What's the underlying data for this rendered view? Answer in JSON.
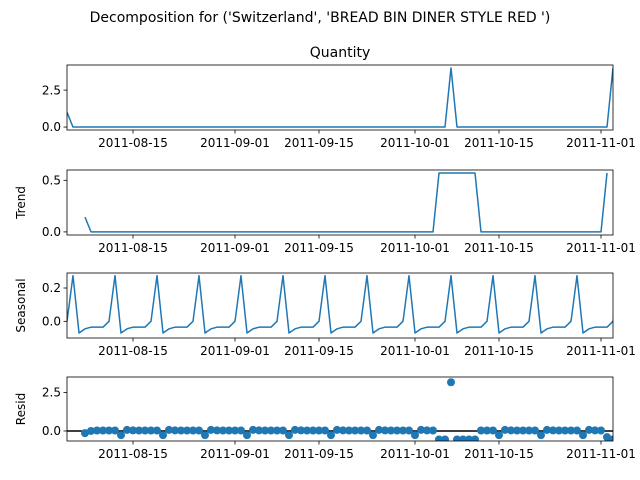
{
  "figure": {
    "suptitle": "Decomposition for ('Switzerland', 'BREAD BIN DINER STYLE RED ')"
  },
  "chart_data": [
    {
      "type": "line",
      "title": "Quantity",
      "ylabel": "",
      "x_start": "2011-08-04",
      "x_end": "2011-11-03",
      "x_tick_labels": [
        "2011-08-15",
        "2011-09-01",
        "2011-09-15",
        "2011-10-01",
        "2011-10-15",
        "2011-11-01"
      ],
      "y_tick_labels": [
        "0.0",
        "2.5"
      ],
      "ylim": [
        -0.2,
        4.2
      ],
      "series": [
        {
          "points": [
            [
              "2011-08-04",
              1.0
            ],
            [
              "2011-08-05",
              0
            ],
            [
              "2011-10-06",
              0
            ],
            [
              "2011-10-07",
              4.0
            ],
            [
              "2011-10-08",
              0
            ],
            [
              "2011-11-02",
              0
            ],
            [
              "2011-11-03",
              4.0
            ]
          ]
        }
      ],
      "color": "#1f77b4"
    },
    {
      "type": "line",
      "title": "",
      "ylabel": "Trend",
      "x_start": "2011-08-04",
      "x_end": "2011-11-03",
      "x_tick_labels": [
        "2011-08-15",
        "2011-09-01",
        "2011-09-15",
        "2011-10-01",
        "2011-10-15",
        "2011-11-01"
      ],
      "y_tick_labels": [
        "0.0",
        "0.5"
      ],
      "ylim": [
        -0.03,
        0.6
      ],
      "series": [
        {
          "points": [
            [
              "2011-08-07",
              0.143
            ],
            [
              "2011-08-08",
              0
            ],
            [
              "2011-10-04",
              0
            ],
            [
              "2011-10-05",
              0.571
            ],
            [
              "2011-10-11",
              0.571
            ],
            [
              "2011-10-12",
              0
            ],
            [
              "2011-11-01",
              0
            ],
            [
              "2011-11-02",
              0.571
            ]
          ]
        }
      ],
      "color": "#1f77b4"
    },
    {
      "type": "line",
      "title": "",
      "ylabel": "Seasonal",
      "x_start": "2011-08-04",
      "x_end": "2011-11-03",
      "x_tick_labels": [
        "2011-08-15",
        "2011-09-01",
        "2011-09-15",
        "2011-10-01",
        "2011-10-15",
        "2011-11-01"
      ],
      "y_tick_labels": [
        "0.0",
        "0.2"
      ],
      "ylim": [
        -0.1,
        0.29
      ],
      "pattern_start": "2011-08-04",
      "pattern_days": 92,
      "pattern": [
        0.0,
        0.274,
        -0.07,
        -0.045,
        -0.035,
        -0.035,
        -0.035
      ],
      "series": [
        {}
      ],
      "color": "#1f77b4"
    },
    {
      "type": "scatter",
      "title": "",
      "ylabel": "Resid",
      "x_start": "2011-08-04",
      "x_end": "2011-11-03",
      "x_tick_labels": [
        "2011-08-15",
        "2011-09-01",
        "2011-09-15",
        "2011-10-01",
        "2011-10-15",
        "2011-11-01"
      ],
      "y_tick_labels": [
        "0.0",
        "2.5"
      ],
      "ylim": [
        -0.65,
        3.5
      ],
      "baseline": 0,
      "series": [
        {
          "points": [
            [
              "2011-08-07",
              -0.14
            ],
            [
              "2011-08-08",
              0.0
            ],
            [
              "2011-08-09",
              0.03
            ],
            [
              "2011-08-10",
              0.03
            ],
            [
              "2011-08-11",
              0.03
            ],
            [
              "2011-08-12",
              0.03
            ],
            [
              "2011-08-13",
              -0.27
            ],
            [
              "2011-08-14",
              0.07
            ],
            [
              "2011-08-15",
              0.04
            ],
            [
              "2011-08-16",
              0.03
            ],
            [
              "2011-08-17",
              0.03
            ],
            [
              "2011-08-18",
              0.03
            ],
            [
              "2011-08-19",
              0.03
            ],
            [
              "2011-08-20",
              -0.27
            ],
            [
              "2011-08-21",
              0.07
            ],
            [
              "2011-08-22",
              0.04
            ],
            [
              "2011-08-23",
              0.03
            ],
            [
              "2011-08-24",
              0.03
            ],
            [
              "2011-08-25",
              0.03
            ],
            [
              "2011-08-26",
              0.03
            ],
            [
              "2011-08-27",
              -0.27
            ],
            [
              "2011-08-28",
              0.07
            ],
            [
              "2011-08-29",
              0.04
            ],
            [
              "2011-08-30",
              0.03
            ],
            [
              "2011-08-31",
              0.03
            ],
            [
              "2011-09-01",
              0.03
            ],
            [
              "2011-09-02",
              0.03
            ],
            [
              "2011-09-03",
              -0.27
            ],
            [
              "2011-09-04",
              0.07
            ],
            [
              "2011-09-05",
              0.04
            ],
            [
              "2011-09-06",
              0.03
            ],
            [
              "2011-09-07",
              0.03
            ],
            [
              "2011-09-08",
              0.03
            ],
            [
              "2011-09-09",
              0.03
            ],
            [
              "2011-09-10",
              -0.27
            ],
            [
              "2011-09-11",
              0.07
            ],
            [
              "2011-09-12",
              0.04
            ],
            [
              "2011-09-13",
              0.03
            ],
            [
              "2011-09-14",
              0.03
            ],
            [
              "2011-09-15",
              0.03
            ],
            [
              "2011-09-16",
              0.03
            ],
            [
              "2011-09-17",
              -0.27
            ],
            [
              "2011-09-18",
              0.07
            ],
            [
              "2011-09-19",
              0.04
            ],
            [
              "2011-09-20",
              0.03
            ],
            [
              "2011-09-21",
              0.03
            ],
            [
              "2011-09-22",
              0.03
            ],
            [
              "2011-09-23",
              0.03
            ],
            [
              "2011-09-24",
              -0.27
            ],
            [
              "2011-09-25",
              0.07
            ],
            [
              "2011-09-26",
              0.04
            ],
            [
              "2011-09-27",
              0.03
            ],
            [
              "2011-09-28",
              0.03
            ],
            [
              "2011-09-29",
              0.03
            ],
            [
              "2011-09-30",
              0.03
            ],
            [
              "2011-10-01",
              -0.27
            ],
            [
              "2011-10-02",
              0.07
            ],
            [
              "2011-10-03",
              0.04
            ],
            [
              "2011-10-04",
              0.03
            ],
            [
              "2011-10-05",
              -0.55
            ],
            [
              "2011-10-06",
              -0.55
            ],
            [
              "2011-10-07",
              3.16
            ],
            [
              "2011-10-08",
              -0.55
            ],
            [
              "2011-10-09",
              -0.55
            ],
            [
              "2011-10-10",
              -0.55
            ],
            [
              "2011-10-11",
              -0.55
            ],
            [
              "2011-10-12",
              0.03
            ],
            [
              "2011-10-13",
              0.03
            ],
            [
              "2011-10-14",
              0.03
            ],
            [
              "2011-10-15",
              -0.27
            ],
            [
              "2011-10-16",
              0.07
            ],
            [
              "2011-10-17",
              0.04
            ],
            [
              "2011-10-18",
              0.03
            ],
            [
              "2011-10-19",
              0.03
            ],
            [
              "2011-10-20",
              0.03
            ],
            [
              "2011-10-21",
              0.03
            ],
            [
              "2011-10-22",
              -0.27
            ],
            [
              "2011-10-23",
              0.07
            ],
            [
              "2011-10-24",
              0.04
            ],
            [
              "2011-10-25",
              0.03
            ],
            [
              "2011-10-26",
              0.03
            ],
            [
              "2011-10-27",
              0.03
            ],
            [
              "2011-10-28",
              0.03
            ],
            [
              "2011-10-29",
              -0.27
            ],
            [
              "2011-10-30",
              0.07
            ],
            [
              "2011-10-31",
              0.04
            ],
            [
              "2011-11-01",
              0.03
            ],
            [
              "2011-11-02",
              -0.4
            ],
            [
              "2011-11-03",
              -0.55
            ]
          ]
        }
      ],
      "color": "#1f77b4"
    }
  ]
}
